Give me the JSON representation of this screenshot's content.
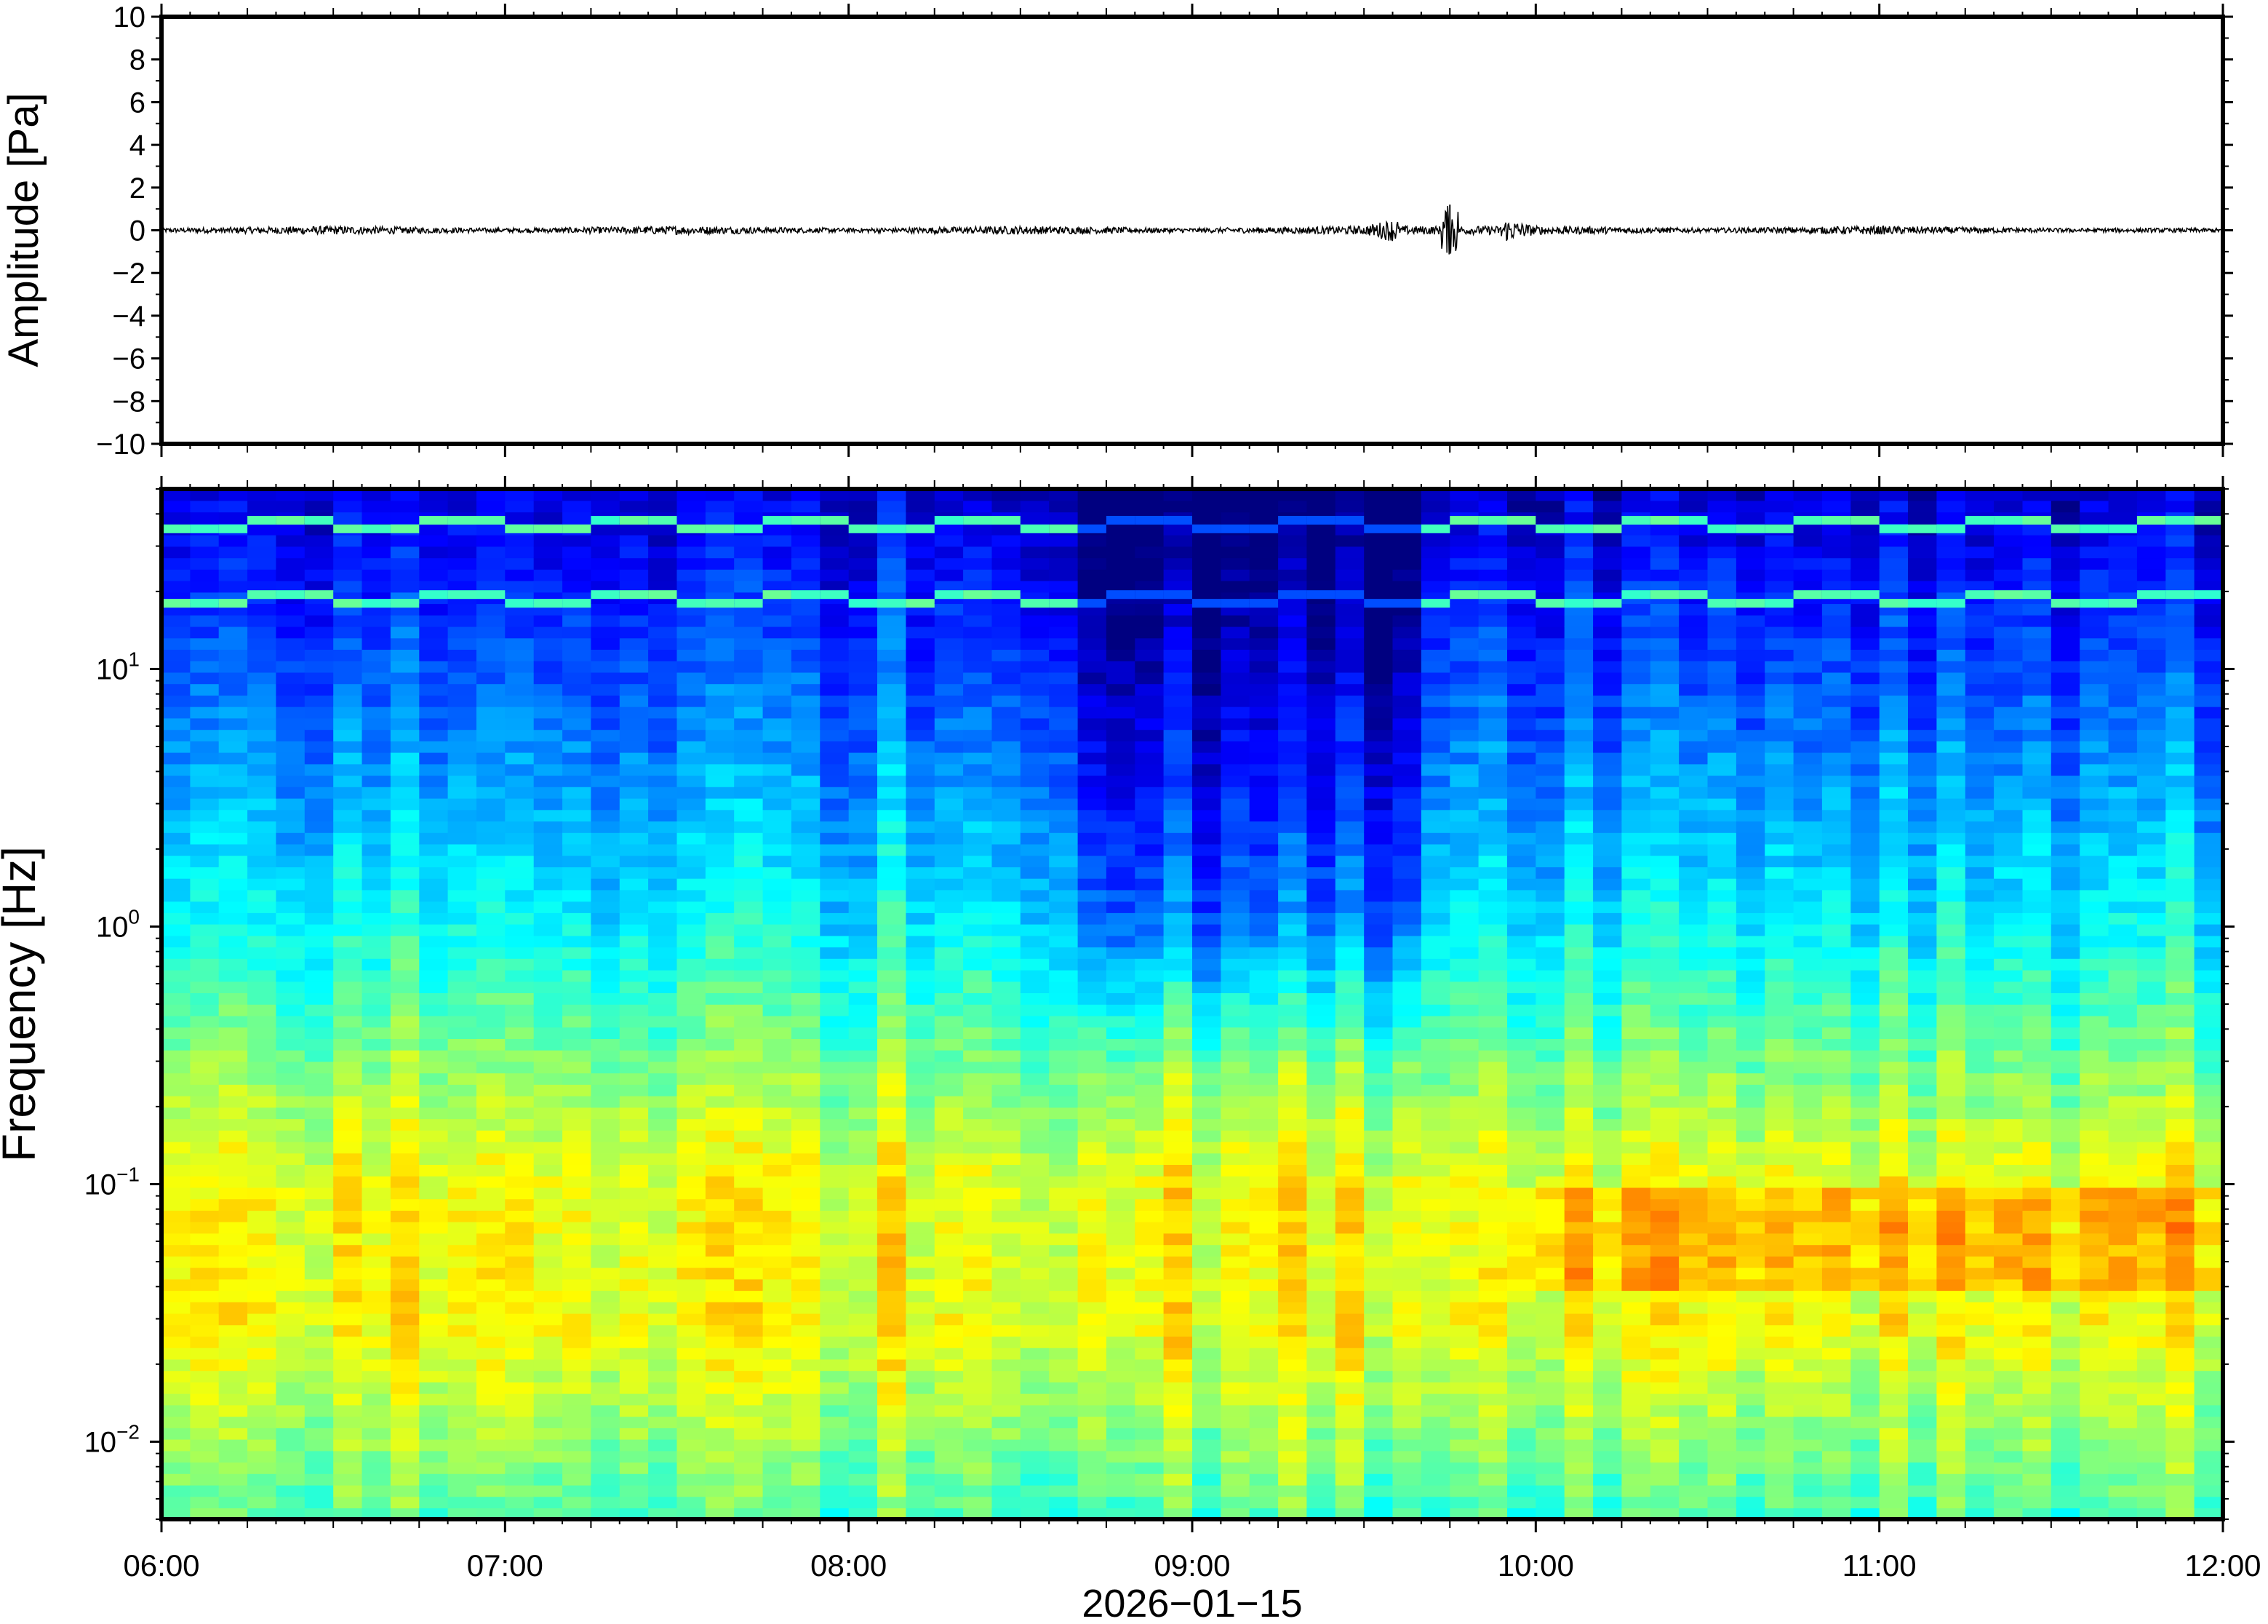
{
  "chart_data": [
    {
      "type": "line",
      "ylabel": "Amplitude [Pa]",
      "ylim": [
        -10,
        10
      ],
      "yticks": [
        10,
        8,
        6,
        4,
        2,
        0,
        -2,
        -4,
        -6,
        -8,
        -10
      ],
      "ytick_labels": [
        "10",
        "8",
        "6",
        "4",
        "2",
        "0",
        "−2",
        "−4",
        "−6",
        "−8",
        "−10"
      ],
      "xlim": [
        "06:00",
        "12:00"
      ],
      "series": [
        {
          "x": [
            "06:00",
            "06:30",
            "07:00",
            "07:30",
            "08:00",
            "08:30",
            "09:00",
            "09:30",
            "09:45",
            "10:00",
            "10:30",
            "11:00",
            "11:30",
            "12:00"
          ],
          "y": [
            0.1,
            0.2,
            0.1,
            0.2,
            0.1,
            0.2,
            0.1,
            0.2,
            1.2,
            0.2,
            0.1,
            0.2,
            0.1,
            0.1
          ],
          "color": "#000000"
        }
      ]
    },
    {
      "type": "heatmap",
      "ylabel": "Frequency [Hz]",
      "xlabel": "2026−01−15",
      "yscale": "log",
      "ylim": [
        0.005,
        50
      ],
      "yticks": [
        0.01,
        0.1,
        1,
        10
      ],
      "ytick_labels": [
        {
          "base": "10",
          "exp": "−2"
        },
        {
          "base": "10",
          "exp": "−1"
        },
        {
          "base": "10",
          "exp": "0"
        },
        {
          "base": "10",
          "exp": "1"
        }
      ],
      "xlim": [
        "06:00",
        "12:00"
      ],
      "xtick_labels": [
        "06:00",
        "07:00",
        "08:00",
        "09:00",
        "10:00",
        "11:00",
        "12:00"
      ],
      "colormap": "jet",
      "lines_hz": [
        18,
        35
      ],
      "quiet_interval": [
        "08:45",
        "09:35"
      ],
      "colorbar": false
    }
  ]
}
